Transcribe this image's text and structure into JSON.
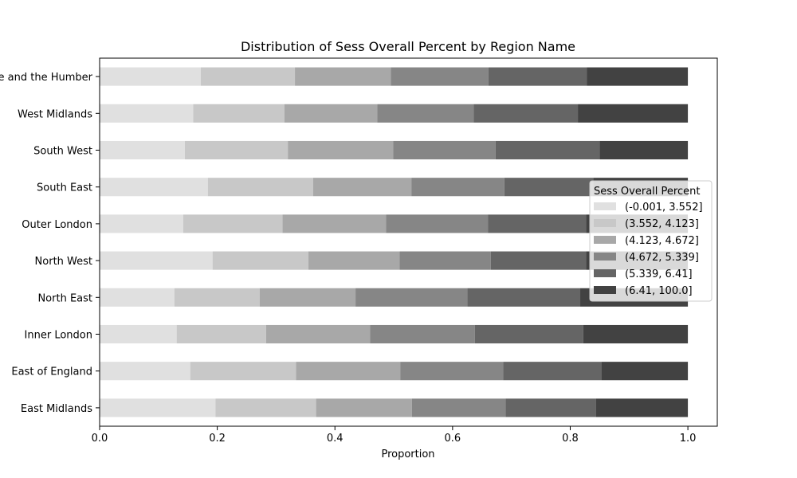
{
  "chart_data": {
    "type": "bar",
    "orientation": "horizontal",
    "stacked": true,
    "title": "Distribution of Sess Overall Percent by Region Name",
    "xlabel": "Proportion",
    "ylabel": "",
    "xlim": [
      0.0,
      1.05
    ],
    "xticks": [
      "0.0",
      "0.2",
      "0.4",
      "0.6",
      "0.8",
      "1.0"
    ],
    "xtick_values": [
      0.0,
      0.2,
      0.4,
      0.6,
      0.8,
      1.0
    ],
    "grid": false,
    "legend_title": "Sess Overall Percent",
    "legend_position": "center-right",
    "categories": [
      "East Midlands",
      "East of England",
      "Inner London",
      "North East",
      "North West",
      "Outer London",
      "South East",
      "South West",
      "West Midlands",
      "Yorkshire and the Humber"
    ],
    "series": [
      {
        "name": "(-0.001, 3.552]",
        "color": "#e0e0e0",
        "values": [
          0.197,
          0.154,
          0.131,
          0.127,
          0.192,
          0.142,
          0.184,
          0.145,
          0.159,
          0.172
        ]
      },
      {
        "name": "(3.552, 4.123]",
        "color": "#c8c8c8",
        "values": [
          0.171,
          0.18,
          0.152,
          0.145,
          0.163,
          0.169,
          0.179,
          0.175,
          0.155,
          0.16
        ]
      },
      {
        "name": "(4.123, 4.672]",
        "color": "#a8a8a8",
        "values": [
          0.163,
          0.177,
          0.177,
          0.163,
          0.155,
          0.176,
          0.167,
          0.179,
          0.158,
          0.163
        ]
      },
      {
        "name": "(4.672, 5.339]",
        "color": "#868686",
        "values": [
          0.159,
          0.175,
          0.178,
          0.19,
          0.155,
          0.173,
          0.158,
          0.174,
          0.164,
          0.166
        ]
      },
      {
        "name": "(5.339, 6.41]",
        "color": "#656565",
        "values": [
          0.154,
          0.167,
          0.184,
          0.192,
          0.162,
          0.167,
          0.151,
          0.177,
          0.177,
          0.167
        ]
      },
      {
        "name": "(6.41, 100.0]",
        "color": "#424242",
        "values": [
          0.156,
          0.147,
          0.178,
          0.183,
          0.173,
          0.173,
          0.161,
          0.15,
          0.187,
          0.172
        ]
      }
    ]
  }
}
